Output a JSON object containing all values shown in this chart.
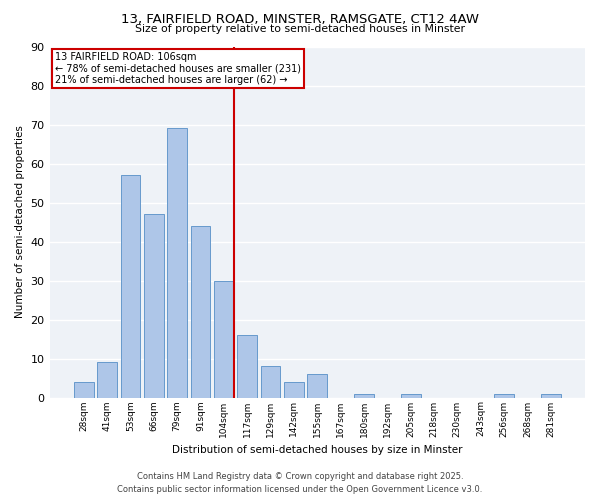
{
  "title": "13, FAIRFIELD ROAD, MINSTER, RAMSGATE, CT12 4AW",
  "subtitle": "Size of property relative to semi-detached houses in Minster",
  "xlabel": "Distribution of semi-detached houses by size in Minster",
  "ylabel": "Number of semi-detached properties",
  "bar_labels": [
    "28sqm",
    "41sqm",
    "53sqm",
    "66sqm",
    "79sqm",
    "91sqm",
    "104sqm",
    "117sqm",
    "129sqm",
    "142sqm",
    "155sqm",
    "167sqm",
    "180sqm",
    "192sqm",
    "205sqm",
    "218sqm",
    "230sqm",
    "243sqm",
    "256sqm",
    "268sqm",
    "281sqm"
  ],
  "bar_values": [
    4,
    9,
    57,
    47,
    69,
    44,
    30,
    16,
    8,
    4,
    6,
    0,
    1,
    0,
    1,
    0,
    0,
    0,
    1,
    0,
    1
  ],
  "bar_color": "#aec6e8",
  "bar_edge_color": "#6699cc",
  "property_label": "13 FAIRFIELD ROAD: 106sqm",
  "annotation_line1": "← 78% of semi-detached houses are smaller (231)",
  "annotation_line2": "21% of semi-detached houses are larger (62) →",
  "vline_color": "#cc0000",
  "box_color": "#cc0000",
  "ylim": [
    0,
    90
  ],
  "yticks": [
    0,
    10,
    20,
    30,
    40,
    50,
    60,
    70,
    80,
    90
  ],
  "footnote1": "Contains HM Land Registry data © Crown copyright and database right 2025.",
  "footnote2": "Contains public sector information licensed under the Open Government Licence v3.0.",
  "background_color": "#eef2f7"
}
